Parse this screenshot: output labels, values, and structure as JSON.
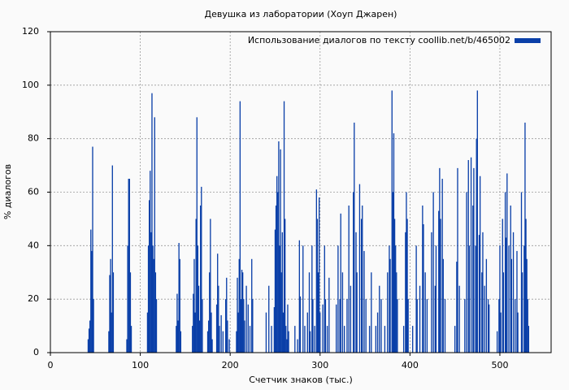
{
  "chart_data": {
    "type": "bar",
    "title": "Девушка из лаборатории (Хоуп Джарен)",
    "xlabel": "Счетчик знаков (тыс.)",
    "ylabel": "% диалогов",
    "series": [
      {
        "name": "Использование диалогов по тексту  coollib.net/b/465002",
        "color": "#0a3fa8",
        "x": [
          42,
          43,
          44,
          45,
          46,
          47,
          48,
          65,
          66,
          67,
          68,
          69,
          70,
          85,
          86,
          87,
          88,
          89,
          90,
          108,
          109,
          110,
          111,
          112,
          113,
          114,
          115,
          116,
          117,
          118,
          140,
          141,
          142,
          143,
          144,
          145,
          158,
          159,
          160,
          161,
          162,
          163,
          164,
          165,
          166,
          167,
          168,
          169,
          175,
          176,
          177,
          178,
          179,
          180,
          185,
          186,
          187,
          188,
          190,
          192,
          195,
          196,
          197,
          199,
          207,
          208,
          209,
          210,
          211,
          212,
          213,
          214,
          215,
          216,
          218,
          220,
          222,
          224,
          225,
          240,
          243,
          246,
          249,
          250,
          251,
          252,
          253,
          254,
          255,
          256,
          257,
          258,
          259,
          260,
          261,
          262,
          263,
          264,
          265,
          272,
          275,
          277,
          278,
          281,
          283,
          286,
          288,
          289,
          291,
          292,
          294,
          296,
          297,
          298,
          299,
          300,
          303,
          305,
          306,
          308,
          310,
          318,
          320,
          322,
          323,
          325,
          327,
          330,
          332,
          334,
          337,
          338,
          340,
          341,
          344,
          346,
          347,
          349,
          351,
          355,
          357,
          362,
          364,
          366,
          368,
          372,
          375,
          377,
          378,
          380,
          381,
          382,
          383,
          384,
          385,
          386,
          393,
          395,
          396,
          397,
          398,
          403,
          407,
          408,
          411,
          414,
          415,
          417,
          419,
          424,
          426,
          428,
          429,
          432,
          433,
          434,
          436,
          437,
          439,
          450,
          452,
          453,
          455,
          461,
          463,
          465,
          466,
          468,
          470,
          471,
          473,
          474,
          475,
          477,
          478,
          480,
          481,
          483,
          485,
          487,
          488,
          497,
          499,
          500,
          501,
          503,
          504,
          506,
          507,
          508,
          510,
          512,
          513,
          515,
          517,
          519,
          520,
          524,
          525,
          527,
          528,
          529,
          530,
          531,
          532
        ],
        "values": [
          5,
          9,
          12,
          46,
          38,
          77,
          20,
          8,
          29,
          35,
          15,
          70,
          30,
          5,
          40,
          65,
          65,
          30,
          10,
          15,
          40,
          57,
          68,
          45,
          97,
          40,
          35,
          88,
          30,
          20,
          10,
          22,
          12,
          41,
          35,
          8,
          10,
          22,
          35,
          15,
          50,
          88,
          40,
          25,
          12,
          55,
          62,
          20,
          8,
          12,
          30,
          50,
          15,
          5,
          18,
          37,
          25,
          10,
          14,
          8,
          20,
          28,
          12,
          5,
          8,
          28,
          15,
          35,
          94,
          20,
          31,
          30,
          20,
          12,
          25,
          18,
          10,
          35,
          20,
          15,
          25,
          10,
          17,
          46,
          55,
          66,
          60,
          79,
          40,
          76,
          30,
          45,
          15,
          94,
          50,
          10,
          5,
          18,
          8,
          10,
          5,
          42,
          21,
          40,
          10,
          15,
          30,
          8,
          40,
          20,
          10,
          61,
          50,
          30,
          58,
          15,
          18,
          40,
          20,
          10,
          28,
          18,
          40,
          20,
          52,
          30,
          10,
          20,
          55,
          25,
          60,
          86,
          45,
          30,
          63,
          50,
          55,
          38,
          20,
          10,
          30,
          10,
          15,
          25,
          20,
          10,
          30,
          40,
          35,
          98,
          60,
          82,
          50,
          40,
          30,
          20,
          10,
          45,
          60,
          50,
          20,
          10,
          40,
          20,
          25,
          55,
          48,
          30,
          20,
          45,
          60,
          25,
          40,
          53,
          69,
          50,
          65,
          35,
          20,
          10,
          34,
          69,
          25,
          20,
          60,
          72,
          40,
          73,
          55,
          69,
          40,
          80,
          98,
          44,
          66,
          30,
          45,
          25,
          35,
          20,
          18,
          8,
          20,
          40,
          15,
          50,
          30,
          60,
          43,
          67,
          40,
          55,
          35,
          45,
          20,
          38,
          15,
          60,
          30,
          40,
          86,
          50,
          35,
          20,
          10
        ]
      }
    ],
    "xlim": [
      0,
      557
    ],
    "xticks": [
      0,
      100,
      200,
      300,
      400,
      500
    ],
    "ylim": [
      0,
      120
    ],
    "yticks": [
      0,
      20,
      40,
      60,
      80,
      100,
      120
    ],
    "grid": true,
    "legend": "top-right"
  }
}
